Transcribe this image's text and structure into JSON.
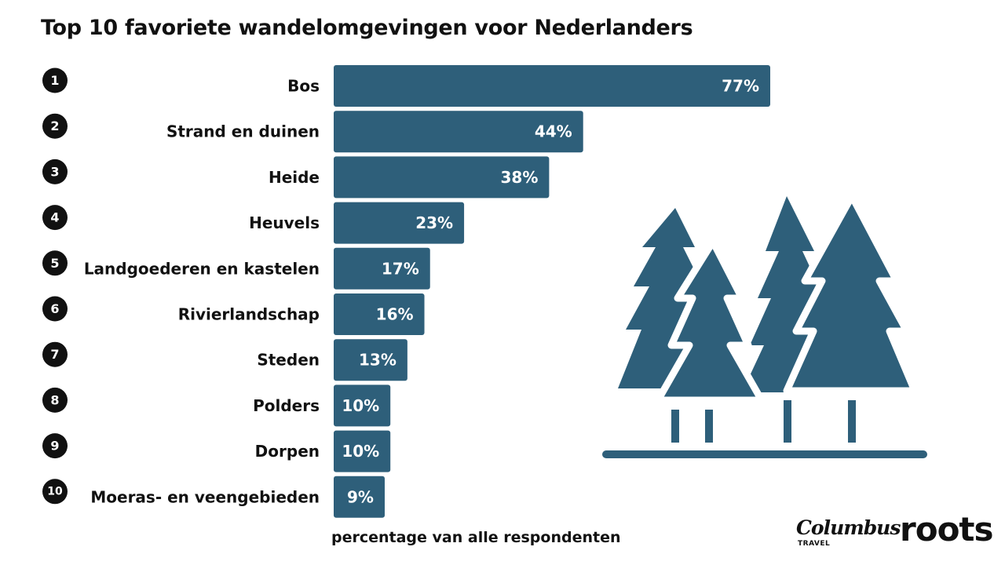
{
  "title": "Top 10 favoriete wandelomgevingen voor Nederlanders",
  "chart_data": {
    "type": "bar",
    "orientation": "horizontal",
    "title": "Top 10 favoriete wandelomgevingen voor Nederlanders",
    "xlabel": "percentage van alle respondenten",
    "ylabel": "",
    "ranks": [
      "1",
      "2",
      "3",
      "4",
      "5",
      "6",
      "7",
      "8",
      "9",
      "10"
    ],
    "categories": [
      "Bos",
      "Strand en duinen",
      "Heide",
      "Heuvels",
      "Landgoederen en kastelen",
      "Rivierlandschap",
      "Steden",
      "Polders",
      "Dorpen",
      "Moeras- en veengebieden"
    ],
    "values": [
      77,
      44,
      38,
      23,
      17,
      16,
      13,
      10,
      10,
      9
    ],
    "value_labels": [
      "77%",
      "44%",
      "38%",
      "23%",
      "17%",
      "16%",
      "13%",
      "10%",
      "10%",
      "9%"
    ],
    "unit": "%",
    "xlim": [
      0,
      77
    ],
    "grid": false,
    "bar_color": "#2e5f7a"
  },
  "illustration": {
    "icon": "pine-trees-icon",
    "color": "#2e5f7a"
  },
  "logos": {
    "columbus": "Columbus",
    "columbus_sub": "TRAVEL",
    "roots": "roots"
  }
}
